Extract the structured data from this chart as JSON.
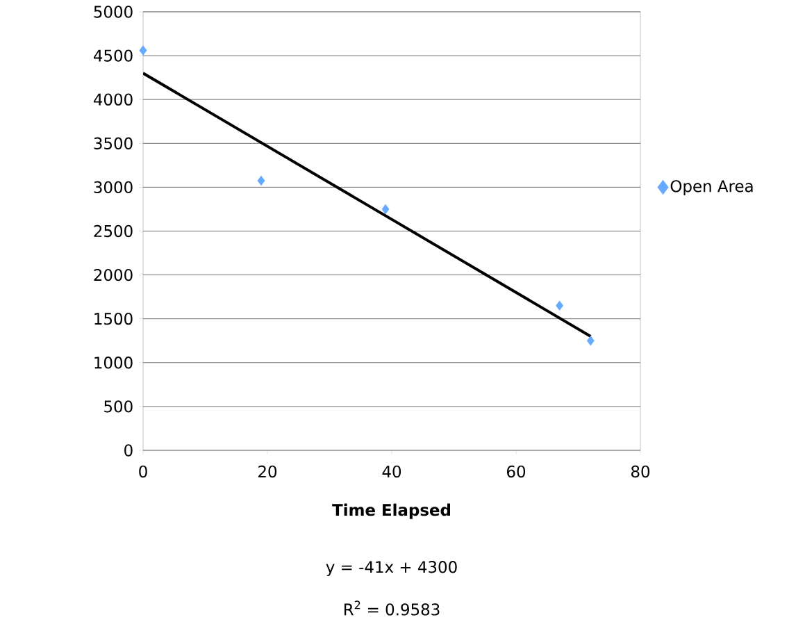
{
  "chart_data": {
    "type": "scatter",
    "xlabel": "Time Elapsed",
    "annotations": [
      "y = -41x + 4300",
      "R$^{2}$ = 0.9583"
    ],
    "series": [
      {
        "name": "Open Area",
        "color": "#66aaff",
        "marker": "diamond",
        "x": [
          0,
          19,
          39,
          67,
          72
        ],
        "values": [
          4560,
          3075,
          2750,
          1650,
          1250
        ]
      },
      {
        "type": "line",
        "color": "#000000",
        "marker": "none",
        "x": [
          0,
          72
        ],
        "values": [
          4300,
          1300
        ]
      }
    ],
    "xlim": [
      0,
      80
    ],
    "ylim": [
      0,
      5000
    ],
    "xticks": [
      0,
      20,
      40,
      60,
      80
    ],
    "yticks": [
      0,
      500,
      1000,
      1500,
      2000,
      2500,
      3000,
      3500,
      4000,
      4500,
      5000
    ],
    "grid": "y",
    "legend": "right"
  }
}
